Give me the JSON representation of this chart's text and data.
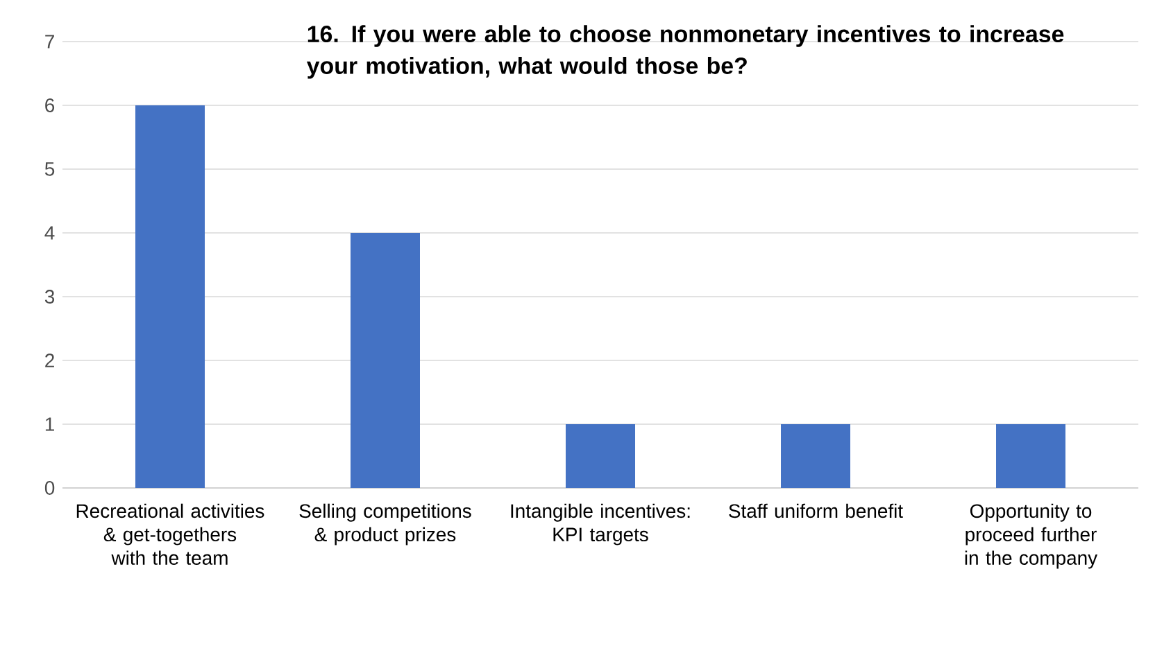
{
  "chart_data": {
    "type": "bar",
    "title": "**16. If you were able to choose nonmonetary incentives to increase your motivation, what would those be?**",
    "categories": [
      "Recreational activities & get-togethers with the team",
      "Selling competitions & product prizes",
      "Intangible incentives: KPI targets",
      "Staff uniform benefit",
      "Opportunity to proceed further in the company"
    ],
    "values": [
      6,
      4,
      1,
      1,
      1
    ],
    "color": "#4472c4",
    "ylim": [
      0,
      7
    ],
    "yticks": [
      0,
      1,
      2,
      3,
      4,
      5,
      6,
      7
    ],
    "grid": "y"
  }
}
